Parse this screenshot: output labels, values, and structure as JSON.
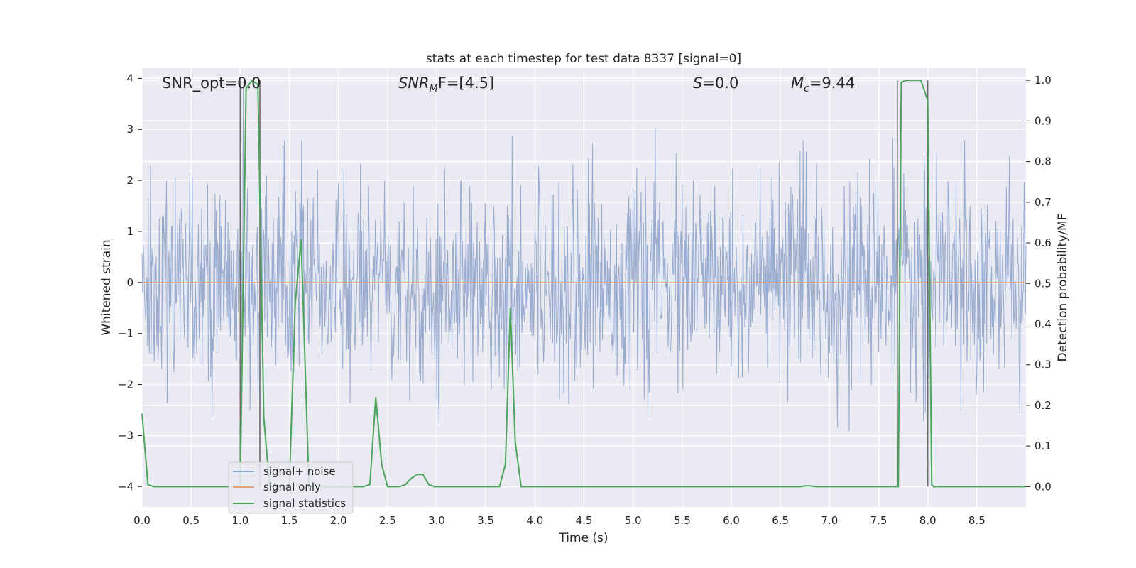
{
  "chart_data": {
    "type": "line",
    "title": "stats at each timestep for test data 8337 [signal=0]",
    "xlabel": "Time (s)",
    "ylabel_left": "Whitened strain",
    "ylabel_right": "Detection probability/MF",
    "xlim": [
      0.0,
      9.0
    ],
    "ylim_left": [
      -4.4,
      4.2
    ],
    "ylim_right": [
      -0.05,
      1.03
    ],
    "x_ticks": [
      "0.0",
      "0.5",
      "1.0",
      "1.5",
      "2.0",
      "2.5",
      "3.0",
      "3.5",
      "4.0",
      "4.5",
      "5.0",
      "5.5",
      "6.0",
      "6.5",
      "7.0",
      "7.5",
      "8.0",
      "8.5"
    ],
    "x_tick_values": [
      0.0,
      0.5,
      1.0,
      1.5,
      2.0,
      2.5,
      3.0,
      3.5,
      4.0,
      4.5,
      5.0,
      5.5,
      6.0,
      6.5,
      7.0,
      7.5,
      8.0,
      8.5
    ],
    "y_left_ticks": [
      "4",
      "3",
      "2",
      "1",
      "0",
      "−1",
      "−2",
      "−3",
      "−4"
    ],
    "y_left_tick_values": [
      4,
      3,
      2,
      1,
      0,
      -1,
      -2,
      -3,
      -4
    ],
    "y_right_ticks": [
      "1.0",
      "0.9",
      "0.8",
      "0.7",
      "0.6",
      "0.5",
      "0.4",
      "0.3",
      "0.2",
      "0.1",
      "0.0"
    ],
    "y_right_tick_values": [
      1.0,
      0.9,
      0.8,
      0.7,
      0.6,
      0.5,
      0.4,
      0.3,
      0.2,
      0.1,
      0.0
    ],
    "grid": true,
    "legend_position": "lower-left",
    "annotations": {
      "snr_opt": "SNR_opt=0.0",
      "snr_mf_main": "SNR",
      "snr_mf_sub": "M",
      "snr_mf_rest": "F=[4.5]",
      "s_main": "S",
      "s_rest": "=0.0",
      "mc_main": "M",
      "mc_sub": "c",
      "mc_rest": "=9.44"
    },
    "series": [
      {
        "name": "signal+ noise",
        "color": "#8fa4cc",
        "axis": "left",
        "noise_amplitude_sigma": 1.0,
        "sample_spacing": 0.00625
      },
      {
        "name": "signal only",
        "color": "#e3a07f",
        "axis": "left",
        "x": [
          0.0,
          9.0
        ],
        "y": [
          0.0,
          0.0
        ]
      },
      {
        "name": "signal statistics",
        "color": "#4aa55a",
        "axis": "right",
        "x": [
          0.0,
          0.06,
          0.12,
          0.9,
          0.98,
          1.0,
          1.06,
          1.12,
          1.18,
          1.24,
          1.3,
          1.5,
          1.56,
          1.62,
          1.7,
          1.75,
          2.25,
          2.32,
          2.38,
          2.44,
          2.5,
          2.62,
          2.68,
          2.74,
          2.8,
          2.86,
          2.92,
          2.98,
          3.6,
          3.64,
          3.7,
          3.75,
          3.8,
          3.86,
          3.95,
          6.7,
          6.76,
          6.8,
          6.86,
          7.7,
          7.73,
          7.78,
          7.85,
          7.93,
          8.0,
          8.04,
          8.06,
          9.0
        ],
        "y": [
          0.18,
          0.005,
          0.0,
          0.0,
          0.0,
          0.0,
          0.98,
          1.0,
          0.99,
          0.17,
          0.0,
          0.0,
          0.45,
          0.61,
          0.0,
          0.0,
          0.0,
          0.005,
          0.22,
          0.055,
          0.0,
          0.0,
          0.005,
          0.02,
          0.03,
          0.03,
          0.005,
          0.0,
          0.0,
          0.0,
          0.055,
          0.44,
          0.11,
          0.0,
          0.0,
          0.0,
          0.002,
          0.002,
          0.0,
          0.0,
          0.995,
          1.0,
          1.0,
          1.0,
          0.95,
          0.005,
          0.0,
          0.0
        ]
      }
    ],
    "vertical_markers": [
      {
        "x": 1.0,
        "y_right": [
          0.0,
          1.0
        ]
      },
      {
        "x": 1.2,
        "y_right": [
          0.0,
          1.0
        ]
      },
      {
        "x": 7.69,
        "y_right": [
          0.0,
          1.0
        ]
      },
      {
        "x": 8.0,
        "y_right": [
          0.0,
          1.0
        ]
      }
    ]
  }
}
